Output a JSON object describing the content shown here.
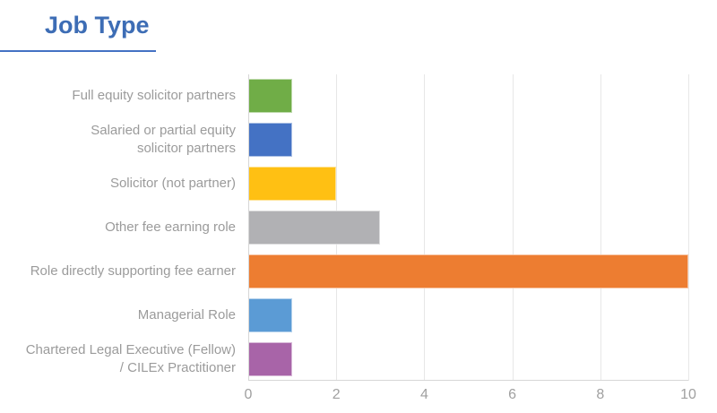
{
  "theme": {
    "title_color": "#3d6db5",
    "underline_color": "#4472c4",
    "label_color": "#9b9b9b",
    "axis_color": "#d6d6d6",
    "gridline_color": "#e7e7e7",
    "background": "#ffffff"
  },
  "chart_data": {
    "type": "bar",
    "orientation": "horizontal",
    "title": "Job Type",
    "categories": [
      "Full equity solicitor partners",
      "Salaried or partial equity\nsolicitor partners",
      "Solicitor (not partner)",
      "Other fee earning role",
      "Role directly supporting fee earner",
      "Managerial Role",
      "Chartered Legal Executive (Fellow)\n/ CILEx Practitioner"
    ],
    "values": [
      1,
      1,
      2,
      3,
      10,
      1,
      1
    ],
    "colors": [
      "#70ad47",
      "#4472c4",
      "#ffc013",
      "#b1b1b4",
      "#ed7d31",
      "#5b9bd5",
      "#a864a8"
    ],
    "xlabel": "",
    "ylabel": "",
    "xlim": [
      0,
      10
    ],
    "x_ticks": [
      0,
      2,
      4,
      6,
      8,
      10
    ],
    "grid": "vertical",
    "legend": "none"
  }
}
